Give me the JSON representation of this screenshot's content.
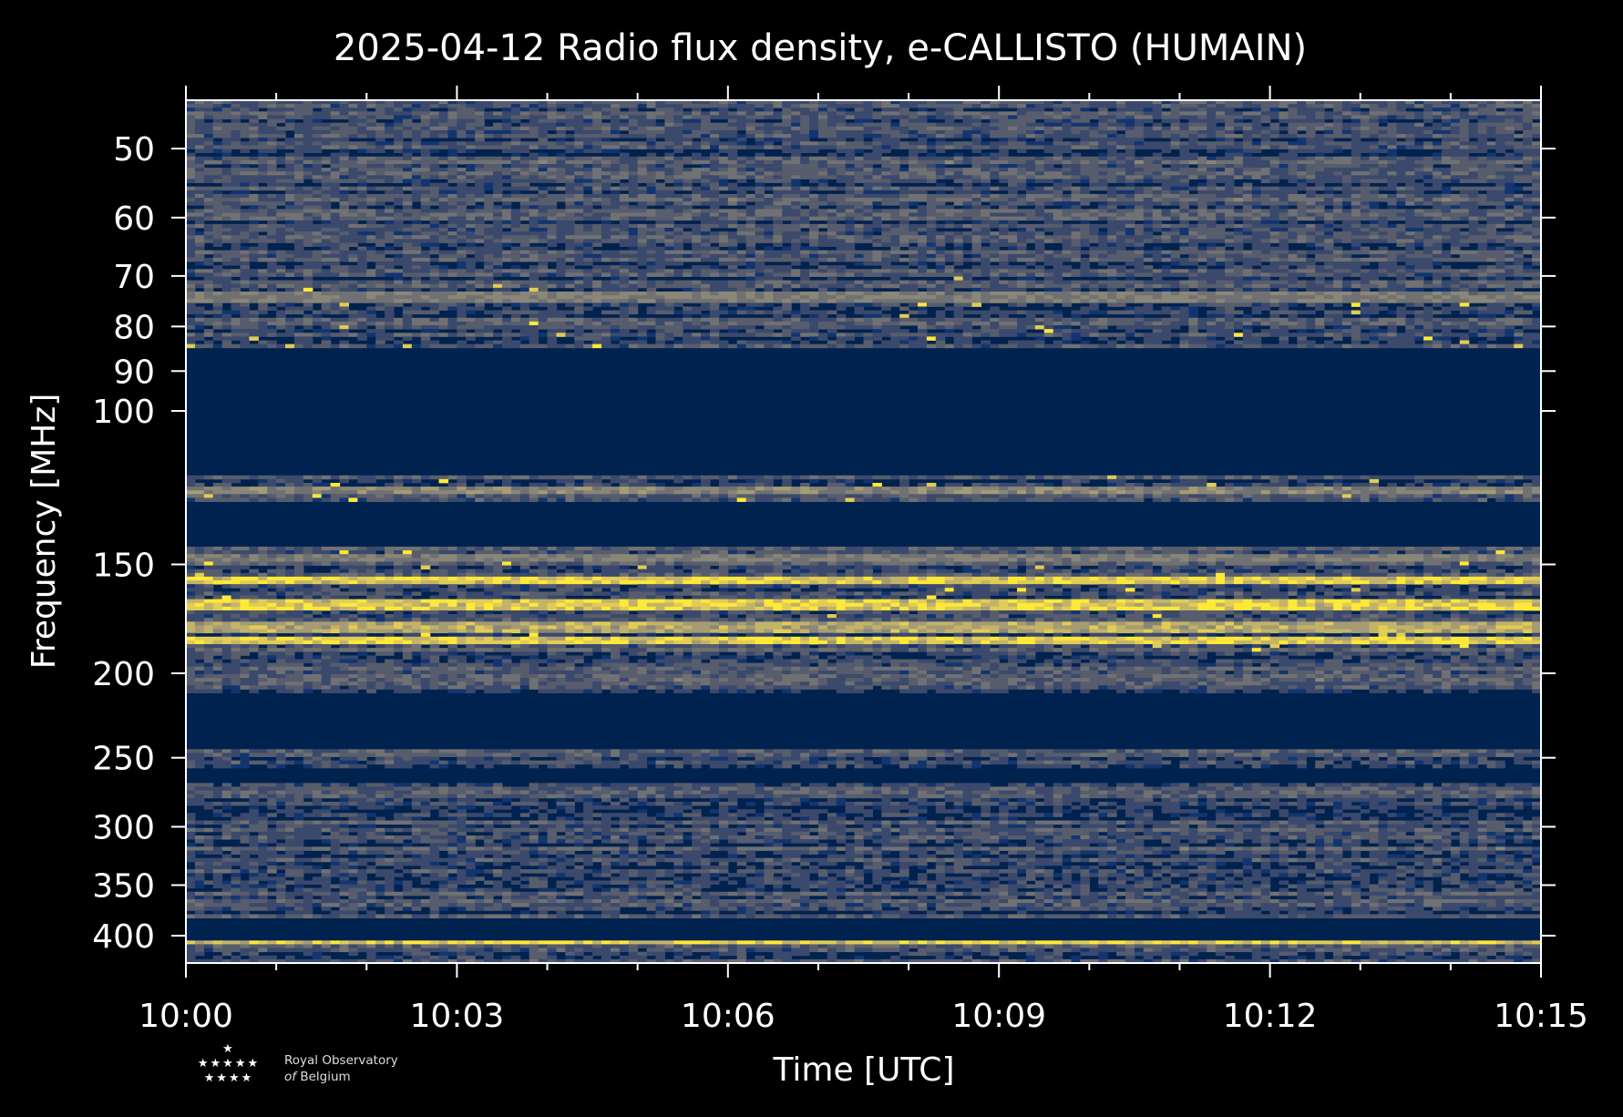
{
  "chart_data": {
    "type": "heatmap",
    "title": "2025-04-12 Radio flux density, e-CALLISTO (HUMAIN)",
    "xlabel": "Time [UTC]",
    "ylabel": "Frequency [MHz]",
    "x_ticks": [
      "10:00",
      "10:03",
      "10:06",
      "10:09",
      "10:12",
      "10:15"
    ],
    "x_range_minutes": [
      0,
      15
    ],
    "y_ticks": [
      50,
      60,
      70,
      80,
      90,
      100,
      150,
      200,
      250,
      300,
      350,
      400
    ],
    "y_range_mhz": [
      44,
      430
    ],
    "y_scale": "log",
    "colormap": [
      "#00224e",
      "#123570",
      "#3b496c",
      "#575d6d",
      "#707173",
      "#8a8678",
      "#a59c74",
      "#c3b369",
      "#e1cc55",
      "#fee838"
    ],
    "masked_bands_mhz": [
      [
        85,
        118
      ],
      [
        127,
        143
      ],
      [
        210,
        245
      ],
      [
        257,
        268
      ],
      [
        382,
        404
      ]
    ],
    "bright_lines_mhz": [
      [
        157,
        1.0
      ],
      [
        167,
        1.0
      ],
      [
        177,
        0.8
      ],
      [
        184,
        1.0
      ],
      [
        406,
        1.0
      ],
      [
        74,
        0.55
      ],
      [
        123,
        0.6
      ],
      [
        148,
        0.55
      ]
    ],
    "tick_color": "#ffffff"
  },
  "logo": {
    "stars_row1": "★",
    "stars_row2": "★★★★★",
    "stars_row3": "★★★★",
    "line1": "Royal Observatory",
    "line2_prefix": "of",
    "line2": "Belgium"
  }
}
